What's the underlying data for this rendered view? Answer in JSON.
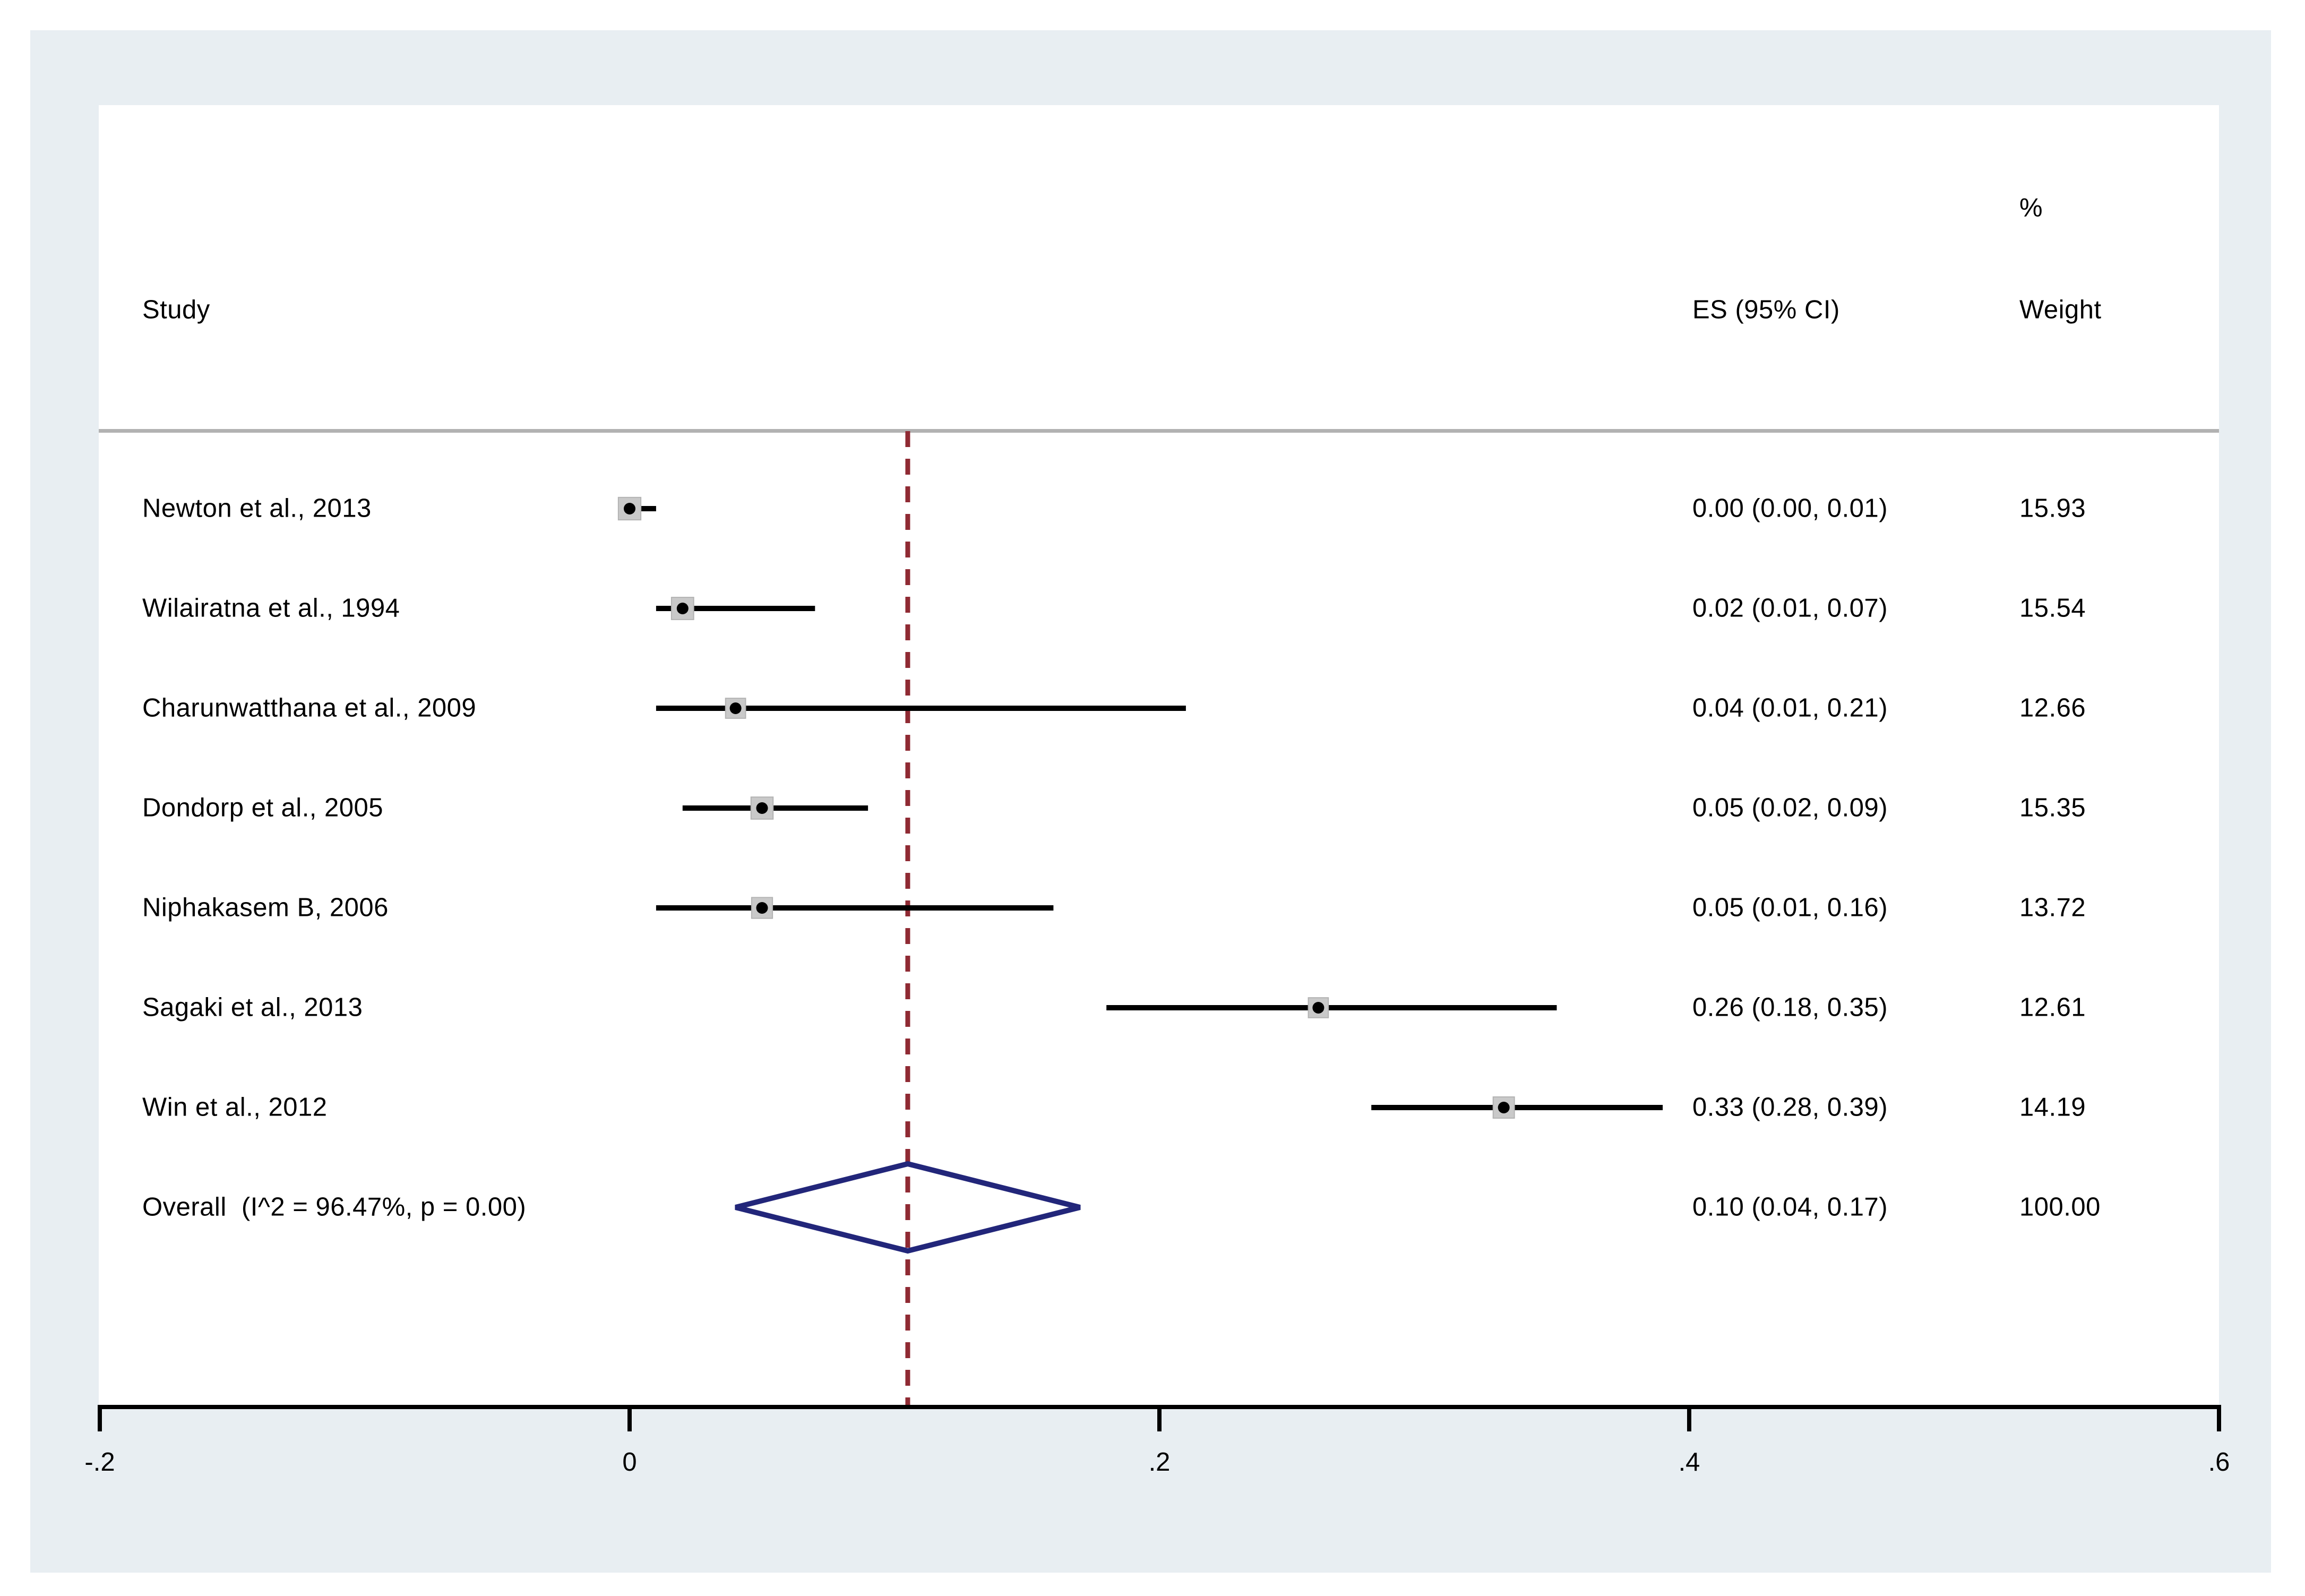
{
  "page": {
    "background": "#ffffff",
    "frame_color": "#e8eef2",
    "plot_background": "#ffffff"
  },
  "header": {
    "study": "Study",
    "percent": "%",
    "es_ci": "ES (95% CI)",
    "weight": "Weight"
  },
  "chart_data": {
    "type": "forest",
    "title": "",
    "xlabel": "",
    "axis": {
      "xmin": -0.2,
      "xmax": 0.6,
      "ticks": [
        -0.2,
        0,
        0.2,
        0.4,
        0.6
      ],
      "tick_labels": [
        "-.2",
        "0",
        ".2",
        ".4",
        ".6"
      ],
      "grid": false
    },
    "null_line": {
      "style": "dashed",
      "color": "#8f2a33",
      "at": "overall-center"
    },
    "studies": [
      {
        "label": "Newton et al., 2013",
        "es": 0.0,
        "lo": 0.0,
        "hi": 0.01,
        "weight": 15.93,
        "es_ci_label": "0.00 (0.00, 0.01)",
        "weight_label": "15.93"
      },
      {
        "label": "Wilairatna et al., 1994",
        "es": 0.02,
        "lo": 0.01,
        "hi": 0.07,
        "weight": 15.54,
        "es_ci_label": "0.02 (0.01, 0.07)",
        "weight_label": "15.54"
      },
      {
        "label": "Charunwatthana et al., 2009",
        "es": 0.04,
        "lo": 0.01,
        "hi": 0.21,
        "weight": 12.66,
        "es_ci_label": "0.04 (0.01, 0.21)",
        "weight_label": "12.66"
      },
      {
        "label": "Dondorp et al., 2005",
        "es": 0.05,
        "lo": 0.02,
        "hi": 0.09,
        "weight": 15.35,
        "es_ci_label": "0.05 (0.02, 0.09)",
        "weight_label": "15.35"
      },
      {
        "label": "Niphakasem B, 2006",
        "es": 0.05,
        "lo": 0.01,
        "hi": 0.16,
        "weight": 13.72,
        "es_ci_label": "0.05 (0.01, 0.16)",
        "weight_label": "13.72"
      },
      {
        "label": "Sagaki et al., 2013",
        "es": 0.26,
        "lo": 0.18,
        "hi": 0.35,
        "weight": 12.61,
        "es_ci_label": "0.26 (0.18, 0.35)",
        "weight_label": "12.61"
      },
      {
        "label": "Win et al., 2012",
        "es": 0.33,
        "lo": 0.28,
        "hi": 0.39,
        "weight": 14.19,
        "es_ci_label": "0.33 (0.28, 0.39)",
        "weight_label": "14.19"
      }
    ],
    "overall": {
      "label": "Overall  (I^2 = 96.47%, p = 0.00)",
      "es": 0.1,
      "lo": 0.04,
      "hi": 0.17,
      "es_ci_label": "0.10 (0.04, 0.17)",
      "weight_label": "100.00",
      "diamond_color": "#22267a"
    },
    "colors": {
      "ci_line": "#000000",
      "marker_dot": "#000000",
      "weight_square_fill": "#c9c9c9",
      "weight_square_edge": "#b3b3b3",
      "axis": "#000000",
      "separator": "#b2b2b2",
      "text": "#000000"
    },
    "legend_position": "none"
  }
}
